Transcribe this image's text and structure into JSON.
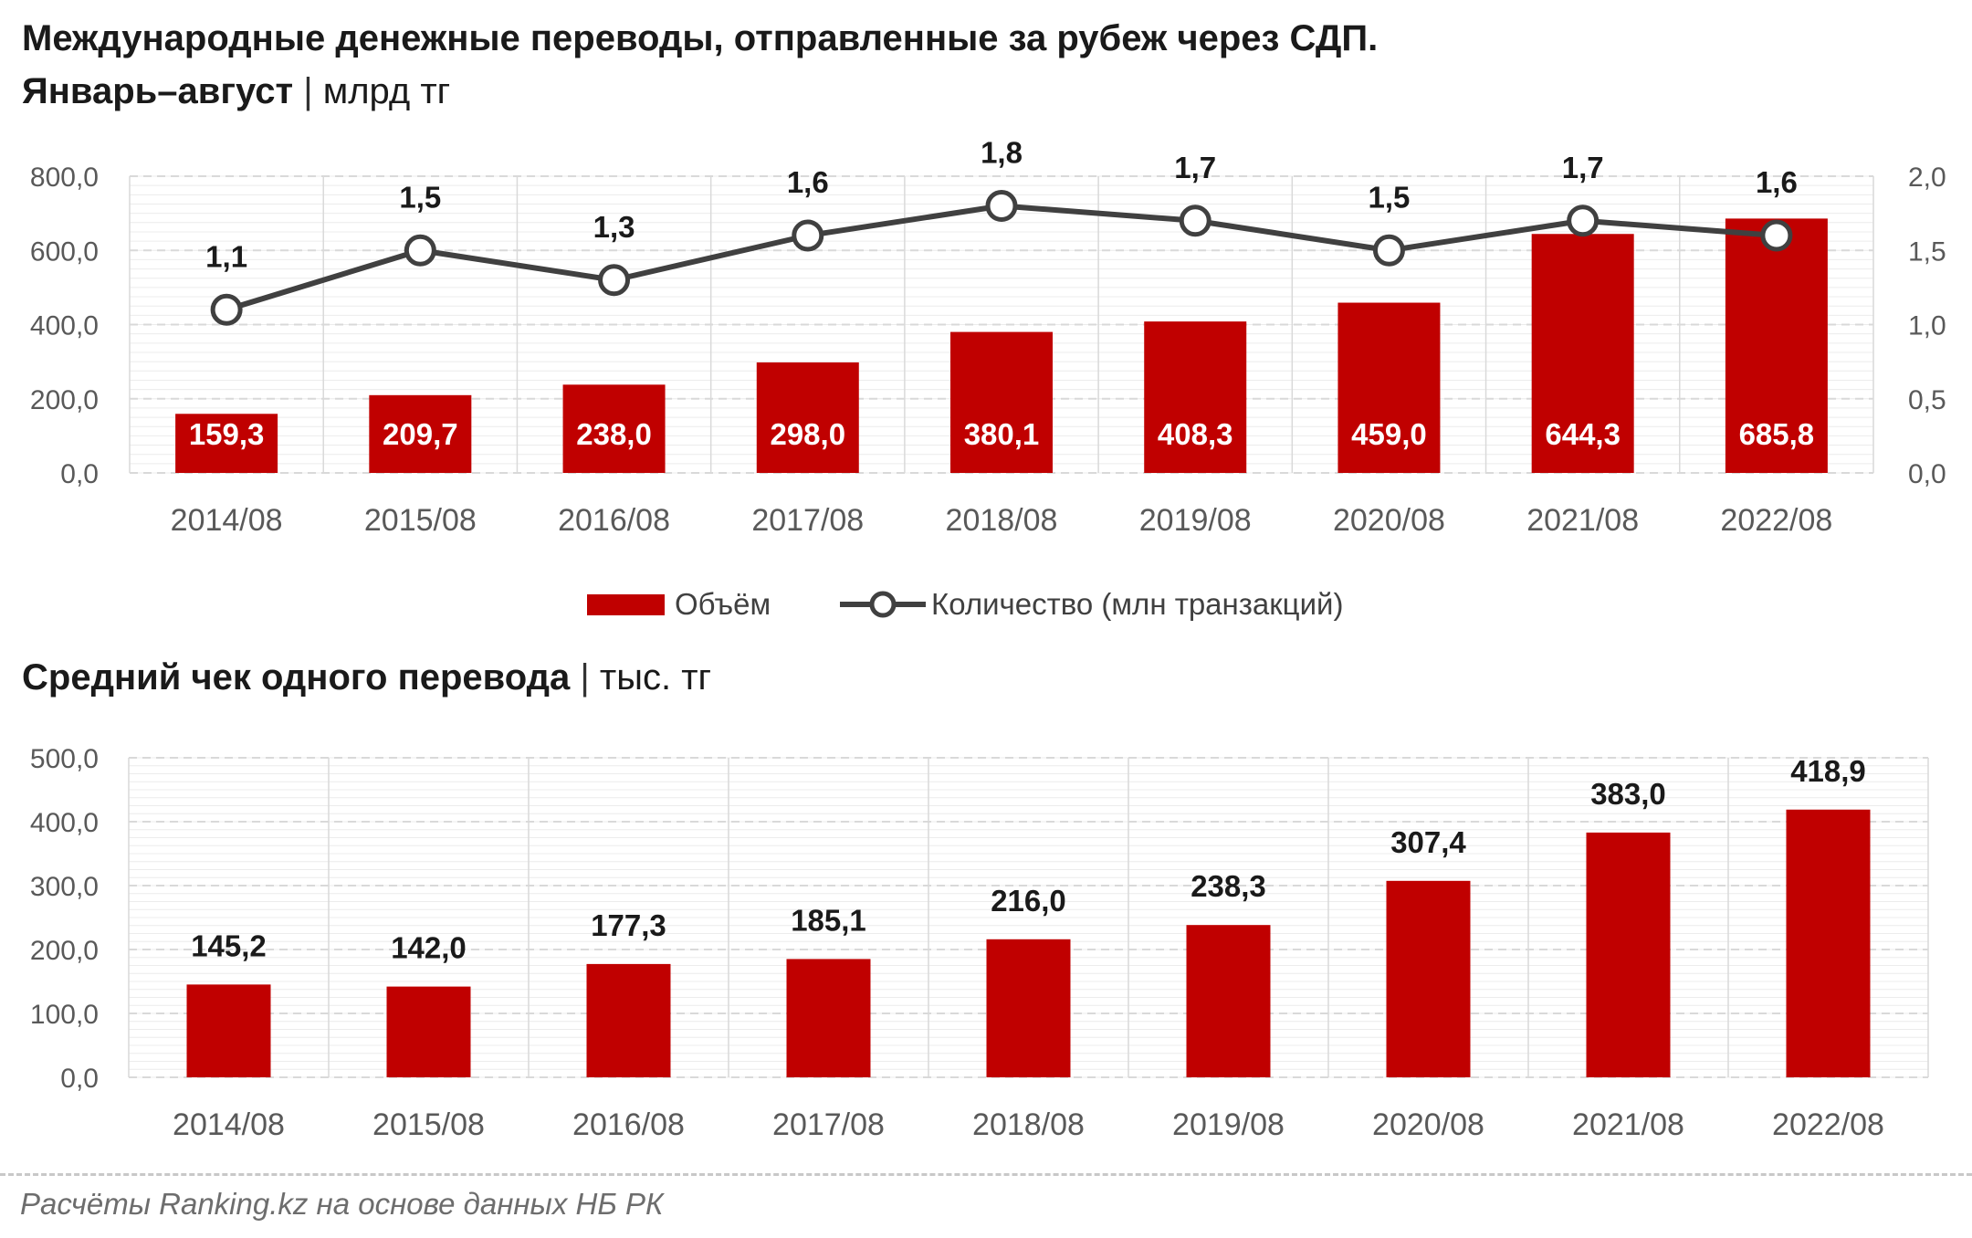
{
  "colors": {
    "bar": "#c00000",
    "line": "#404040",
    "grid": "#d9d9d9",
    "minor_grid": "#ececec",
    "axis_text": "#595959",
    "source": "#6d6d6d"
  },
  "chart1": {
    "title": "Международные денежные переводы, отправленные за рубеж через СДП.",
    "subtitle": "Январь–август",
    "separator": "|",
    "unit": "млрд тг"
  },
  "chart2": {
    "title": "Средний чек одного перевода",
    "separator": "|",
    "unit": "тыс. тг"
  },
  "source_note": "Расчёты Ranking.kz на основе данных НБ РК",
  "chart_data": [
    {
      "type": "bar",
      "title": "Международные денежные переводы, отправленные за рубеж через СДП. Январь–август | млрд тг",
      "categories": [
        "2014/08",
        "2015/08",
        "2016/08",
        "2017/08",
        "2018/08",
        "2019/08",
        "2020/08",
        "2021/08",
        "2022/08"
      ],
      "series": [
        {
          "name": "Объём",
          "type": "bar",
          "axis": "left",
          "values": [
            159.3,
            209.7,
            238.0,
            298.0,
            380.1,
            408.3,
            459.0,
            644.3,
            685.8
          ],
          "labels": [
            "159,3",
            "209,7",
            "238,0",
            "298,0",
            "380,1",
            "408,3",
            "459,0",
            "644,3",
            "685,8"
          ]
        },
        {
          "name": "Количество (млн транзакций)",
          "type": "line",
          "axis": "right",
          "values": [
            1.1,
            1.5,
            1.3,
            1.6,
            1.8,
            1.7,
            1.5,
            1.7,
            1.6
          ],
          "labels": [
            "1,1",
            "1,5",
            "1,3",
            "1,6",
            "1,8",
            "1,7",
            "1,5",
            "1,7",
            "1,6"
          ]
        }
      ],
      "ylim": [
        0,
        800
      ],
      "y2lim": [
        0,
        2
      ],
      "yticks": [
        "0,0",
        "200,0",
        "400,0",
        "600,0",
        "800,0"
      ],
      "y2ticks": [
        "0,0",
        "0,5",
        "1,0",
        "1,5",
        "2,0"
      ],
      "legend": {
        "position": "bottom",
        "items": [
          "Объём",
          "Количество (млн транзакций)"
        ]
      },
      "grid": true
    },
    {
      "type": "bar",
      "title": "Средний чек одного перевода | тыс. тг",
      "categories": [
        "2014/08",
        "2015/08",
        "2016/08",
        "2017/08",
        "2018/08",
        "2019/08",
        "2020/08",
        "2021/08",
        "2022/08"
      ],
      "series": [
        {
          "name": "",
          "values": [
            145.2,
            142.0,
            177.3,
            185.1,
            216.0,
            238.3,
            307.4,
            383.0,
            418.9
          ],
          "labels": [
            "145,2",
            "142,0",
            "177,3",
            "185,1",
            "216,0",
            "238,3",
            "307,4",
            "383,0",
            "418,9"
          ]
        }
      ],
      "ylim": [
        0,
        500
      ],
      "yticks": [
        "0,0",
        "100,0",
        "200,0",
        "300,0",
        "400,0",
        "500,0"
      ],
      "grid": true
    }
  ]
}
